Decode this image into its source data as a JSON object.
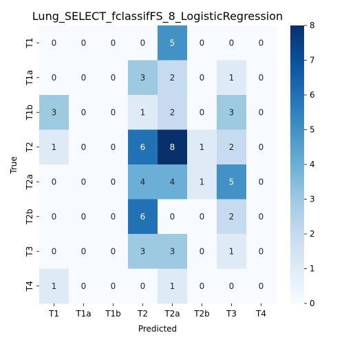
{
  "chart_data": {
    "type": "heatmap",
    "title": "Lung_SELECT_fclassifFS_8_LogisticRegression",
    "xlabel": "Predicted",
    "ylabel": "True",
    "x_categories": [
      "T1",
      "T1a",
      "T1b",
      "T2",
      "T2a",
      "T2b",
      "T3",
      "T4"
    ],
    "y_categories": [
      "T1",
      "T1a",
      "T1b",
      "T2",
      "T2a",
      "T2b",
      "T3",
      "T4"
    ],
    "values": [
      [
        0,
        0,
        0,
        0,
        5,
        0,
        0,
        0
      ],
      [
        0,
        0,
        0,
        3,
        2,
        0,
        1,
        0
      ],
      [
        3,
        0,
        0,
        1,
        2,
        0,
        3,
        0
      ],
      [
        1,
        0,
        0,
        6,
        8,
        1,
        2,
        0
      ],
      [
        0,
        0,
        0,
        4,
        4,
        1,
        5,
        0
      ],
      [
        0,
        0,
        0,
        6,
        0,
        0,
        2,
        0
      ],
      [
        0,
        0,
        0,
        3,
        3,
        0,
        1,
        0
      ],
      [
        1,
        0,
        0,
        0,
        1,
        0,
        0,
        0
      ]
    ],
    "colorbar": {
      "range": [
        0,
        8
      ],
      "ticks": [
        "0",
        "1",
        "2",
        "3",
        "4",
        "5",
        "6",
        "7",
        "8"
      ]
    },
    "colormap": "Blues"
  }
}
